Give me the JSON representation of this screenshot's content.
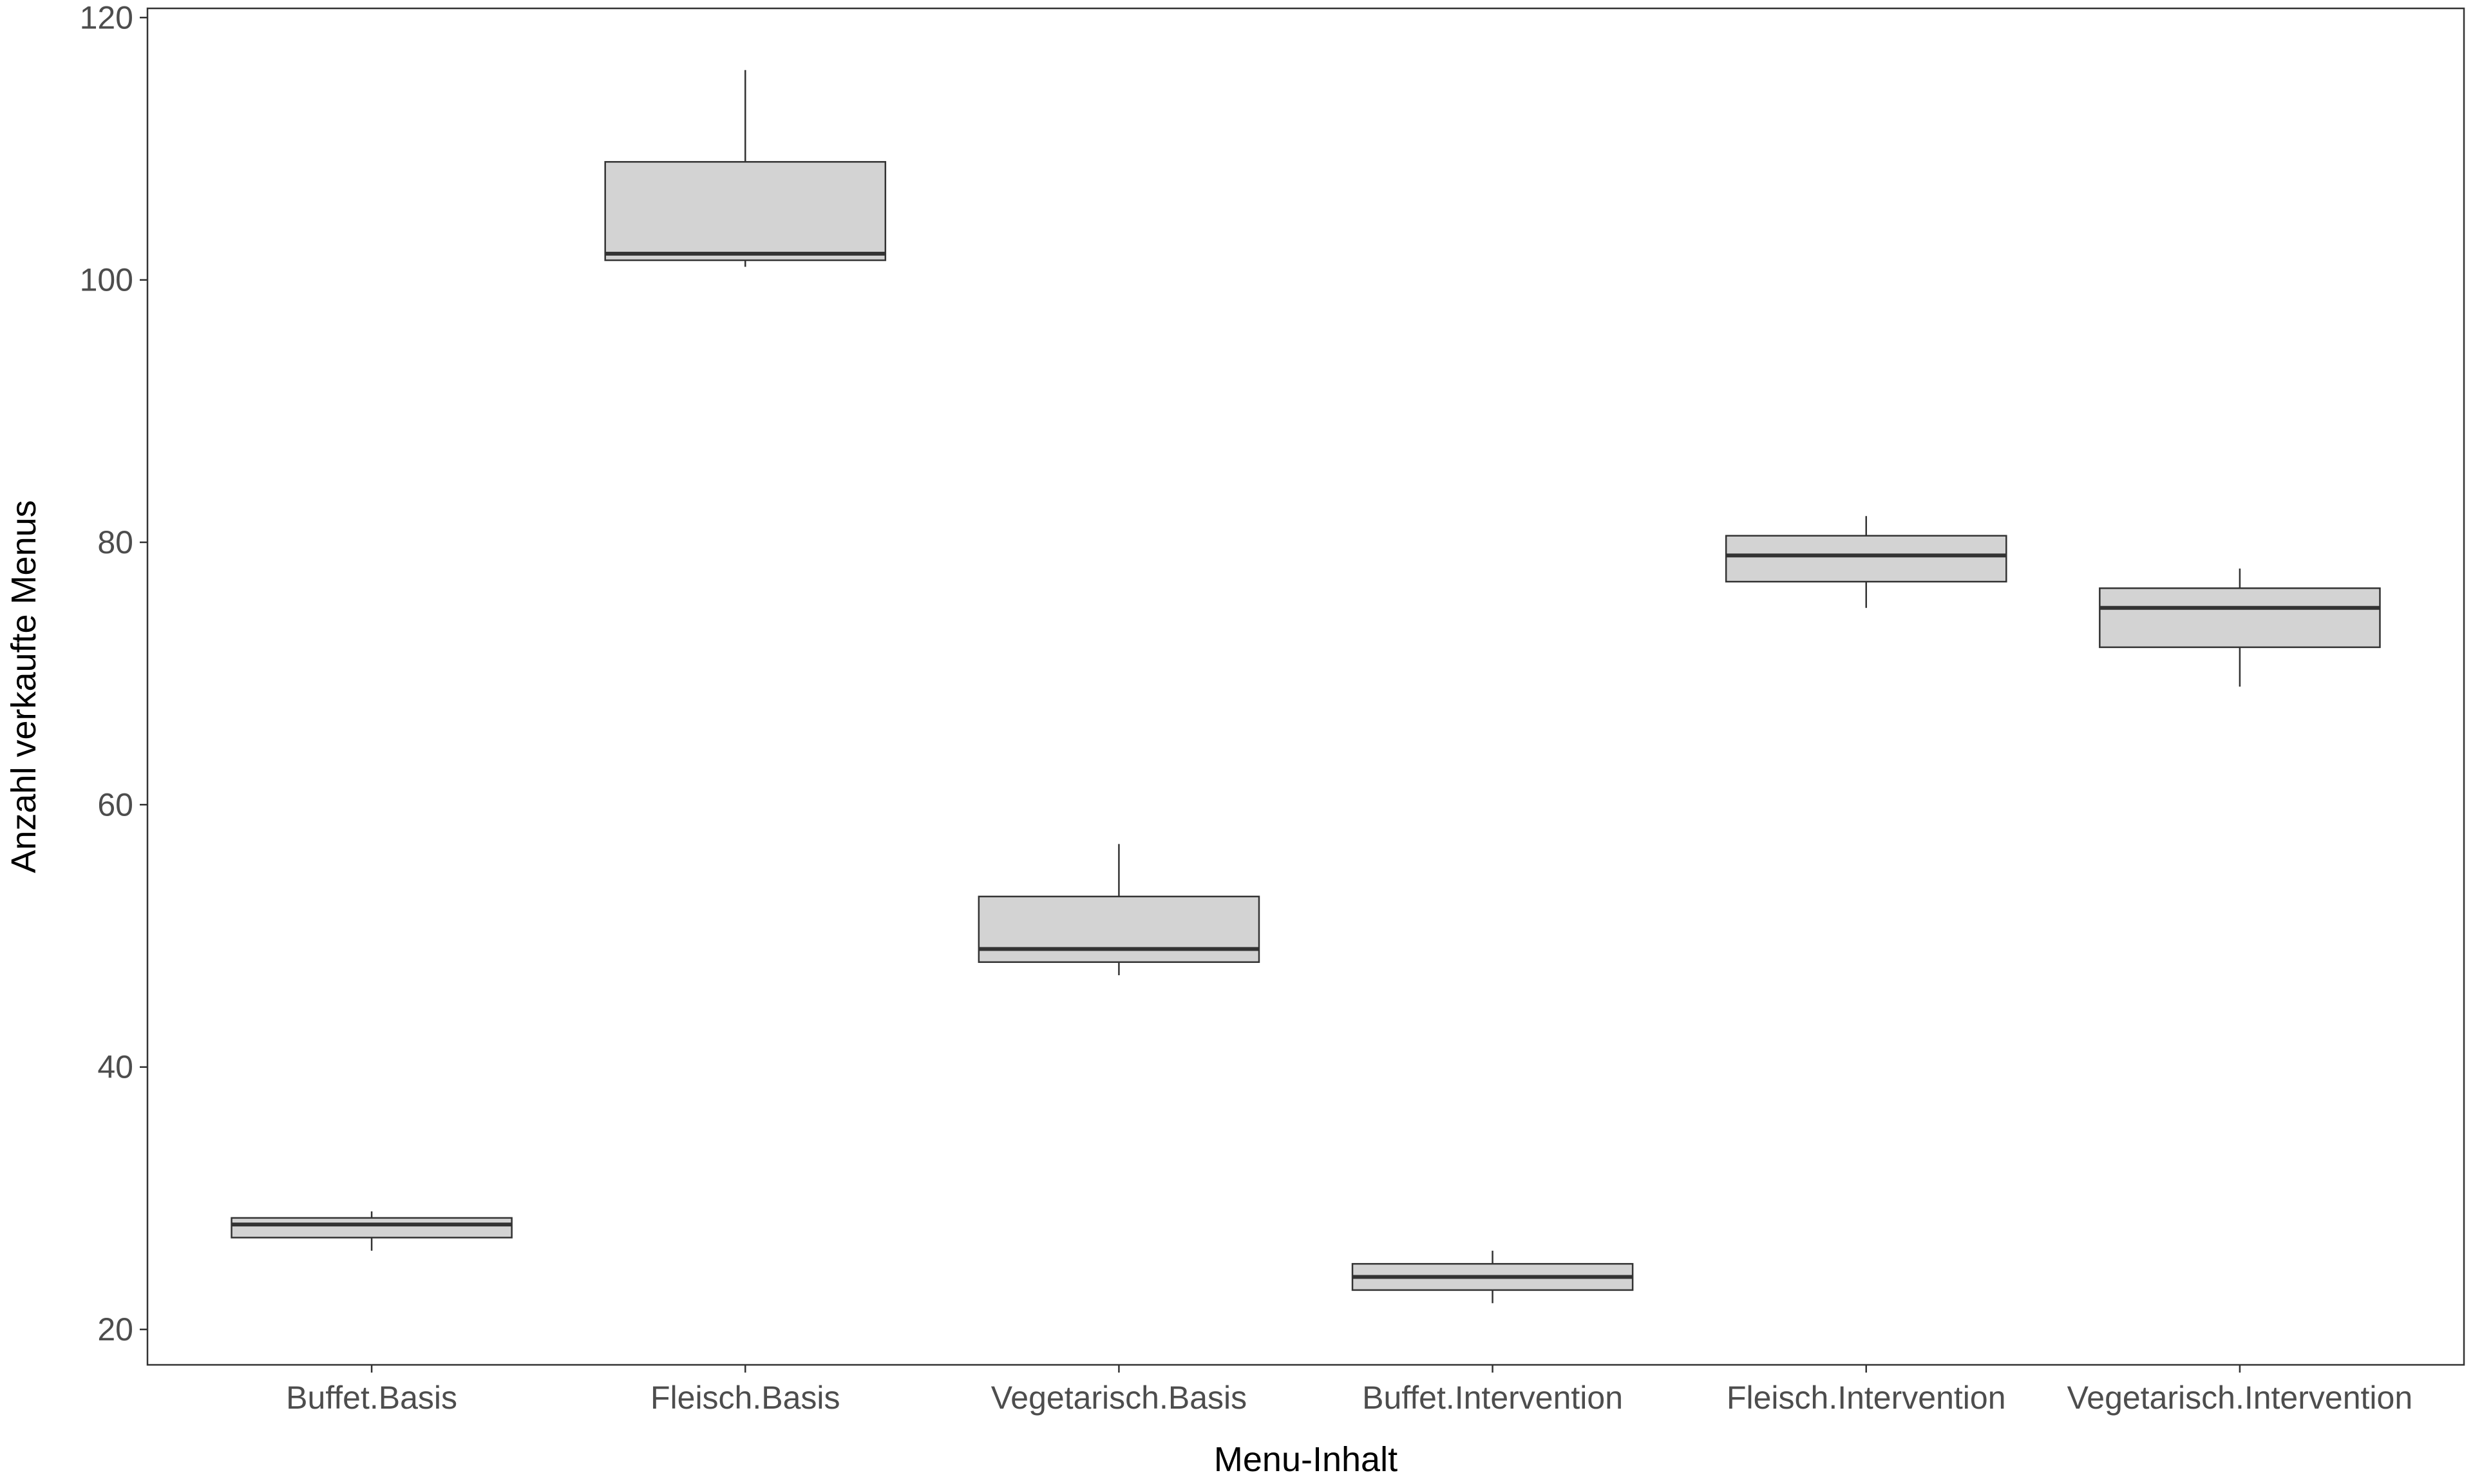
{
  "chart_data": {
    "type": "boxplot",
    "title": "",
    "xlabel": "Menu-Inhalt",
    "ylabel": "Anzahl verkaufte Menus",
    "ylim": [
      17.3,
      120.7
    ],
    "yticks": [
      20,
      40,
      60,
      80,
      100,
      120
    ],
    "grid": false,
    "legend": "none",
    "colors": {
      "box_fill": "#d3d3d3",
      "box_stroke": "#333333",
      "panel_border": "#333333",
      "tick_text": "#4d4d4d"
    },
    "categories": [
      "Buffet.Basis",
      "Fleisch.Basis",
      "Vegetarisch.Basis",
      "Buffet.Intervention",
      "Fleisch.Intervention",
      "Vegetarisch.Intervention"
    ],
    "boxes": [
      {
        "category": "Buffet.Basis",
        "min": 26,
        "q1": 27,
        "median": 28,
        "q3": 28.5,
        "max": 29
      },
      {
        "category": "Fleisch.Basis",
        "min": 101,
        "q1": 101.5,
        "median": 102,
        "q3": 109,
        "max": 116
      },
      {
        "category": "Vegetarisch.Basis",
        "min": 47,
        "q1": 48,
        "median": 49,
        "q3": 53,
        "max": 57
      },
      {
        "category": "Buffet.Intervention",
        "min": 22,
        "q1": 23,
        "median": 24,
        "q3": 25,
        "max": 26
      },
      {
        "category": "Fleisch.Intervention",
        "min": 75,
        "q1": 77,
        "median": 79,
        "q3": 80.5,
        "max": 82
      },
      {
        "category": "Vegetarisch.Intervention",
        "min": 69,
        "q1": 72,
        "median": 75,
        "q3": 76.5,
        "max": 78
      }
    ]
  }
}
